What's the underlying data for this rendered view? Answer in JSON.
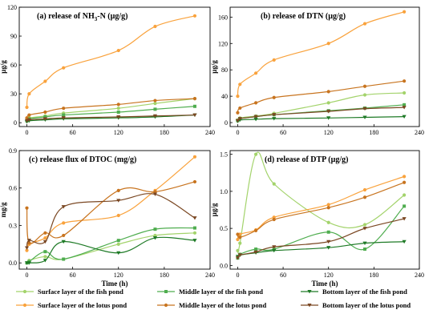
{
  "series_styles": [
    {
      "name": "Surface layer of the fish pond",
      "color": "#a3d36b",
      "marker": "circle"
    },
    {
      "name": "Middle layer of the fish pond",
      "color": "#4fad4f",
      "marker": "square"
    },
    {
      "name": "Bottom layer of the fish pond",
      "color": "#1e7a26",
      "marker": "tri-down"
    },
    {
      "name": "Surface layer of the lotus pond",
      "color": "#f9a23c",
      "marker": "circle"
    },
    {
      "name": "Middle layer of the lotus pond",
      "color": "#c8741f",
      "marker": "circle"
    },
    {
      "name": "Bottom layer of the lotus pond",
      "color": "#7a4722",
      "marker": "tri-down"
    }
  ],
  "chart_data": [
    {
      "type": "line",
      "title": "(a) release of NH",
      "title_sub": "3",
      "title_rest": "-N (µg/g)",
      "ylabel": "µg/g",
      "xlabel": "",
      "xlim": [
        -10,
        240
      ],
      "ylim": [
        -4,
        120
      ],
      "xticks": [
        0,
        60,
        120,
        180,
        240
      ],
      "yticks": [
        0,
        30,
        60,
        90,
        120
      ],
      "x": [
        0,
        3,
        24,
        48,
        120,
        168,
        220
      ],
      "series": [
        {
          "name": "Surface layer of the fish pond",
          "values": [
            3,
            5,
            7,
            10,
            15,
            20,
            25
          ]
        },
        {
          "name": "Middle layer of the fish pond",
          "values": [
            2,
            4,
            6,
            8,
            11,
            14,
            17
          ]
        },
        {
          "name": "Bottom layer of the fish pond",
          "values": [
            1,
            2,
            3,
            4,
            5,
            6,
            8
          ]
        },
        {
          "name": "Surface layer of the lotus pond",
          "values": [
            16,
            30,
            43,
            57,
            75,
            100,
            111
          ]
        },
        {
          "name": "Middle layer of the lotus pond",
          "values": [
            5,
            8,
            11,
            15,
            19,
            23,
            25
          ]
        },
        {
          "name": "Bottom layer of the lotus pond",
          "values": [
            2,
            3,
            4,
            5,
            6,
            7,
            8
          ]
        }
      ]
    },
    {
      "type": "line",
      "title": "(b) release of DTN (µg/g)",
      "ylabel": "µg/g",
      "xlabel": "",
      "xlim": [
        -10,
        240
      ],
      "ylim": [
        -6,
        175
      ],
      "xticks": [
        0,
        60,
        120,
        180,
        240
      ],
      "yticks": [
        0,
        40,
        80,
        120,
        160
      ],
      "x": [
        0,
        3,
        24,
        48,
        120,
        168,
        220
      ],
      "series": [
        {
          "name": "Surface layer of the fish pond",
          "values": [
            4,
            7,
            10,
            14,
            30,
            42,
            45
          ]
        },
        {
          "name": "Middle layer of the fish pond",
          "values": [
            3,
            6,
            9,
            12,
            18,
            22,
            27
          ]
        },
        {
          "name": "Bottom layer of the fish pond",
          "values": [
            2,
            4,
            5,
            6,
            7,
            8,
            9
          ]
        },
        {
          "name": "Surface layer of the lotus pond",
          "values": [
            40,
            58,
            75,
            95,
            120,
            150,
            168
          ]
        },
        {
          "name": "Middle layer of the lotus pond",
          "values": [
            15,
            22,
            30,
            38,
            47,
            55,
            63
          ]
        },
        {
          "name": "Bottom layer of the lotus pond",
          "values": [
            3,
            6,
            9,
            12,
            17,
            21,
            23
          ]
        }
      ]
    },
    {
      "type": "line",
      "title": "(c) release flux of DTOC (mg/g)",
      "ylabel": "mg/g",
      "xlabel": "Time (h)",
      "xlim": [
        -10,
        240
      ],
      "ylim": [
        -0.05,
        0.9
      ],
      "xticks": [
        0,
        60,
        120,
        180,
        240
      ],
      "yticks": [
        0.0,
        0.3,
        0.6,
        0.9
      ],
      "ytick_labels": [
        "0.0",
        "0.3",
        "0.6",
        "0.9"
      ],
      "x": [
        0,
        3,
        24,
        48,
        120,
        168,
        220
      ],
      "series": [
        {
          "name": "Surface layer of the fish pond",
          "values": [
            0.0,
            0.02,
            0.05,
            0.03,
            0.15,
            0.22,
            0.24
          ]
        },
        {
          "name": "Middle layer of the fish pond",
          "values": [
            0.0,
            0.01,
            0.09,
            0.03,
            0.18,
            0.27,
            0.28
          ]
        },
        {
          "name": "Bottom layer of the fish pond",
          "values": [
            0.0,
            0.0,
            0.02,
            0.17,
            0.08,
            0.2,
            0.18
          ]
        },
        {
          "name": "Surface layer of the lotus pond",
          "values": [
            0.1,
            0.15,
            0.2,
            0.32,
            0.38,
            0.58,
            0.85
          ]
        },
        {
          "name": "Middle layer of the lotus pond",
          "values": [
            0.44,
            0.16,
            0.24,
            0.22,
            0.58,
            0.57,
            0.65
          ]
        },
        {
          "name": "Bottom layer of the lotus pond",
          "values": [
            0.12,
            0.18,
            0.17,
            0.45,
            0.5,
            0.55,
            0.36
          ]
        }
      ]
    },
    {
      "type": "line",
      "title": "(d) release of DTP (µg/g)",
      "ylabel": "µg/g",
      "xlabel": "Time (h)",
      "xlim": [
        -10,
        240
      ],
      "ylim": [
        -0.05,
        1.55
      ],
      "xticks": [
        0,
        60,
        120,
        180,
        240
      ],
      "yticks": [
        0.0,
        0.5,
        1.0,
        1.5
      ],
      "ytick_labels": [
        "0.0",
        "0.5",
        "1.0",
        "1.5"
      ],
      "x": [
        0,
        3,
        24,
        48,
        120,
        168,
        220
      ],
      "series": [
        {
          "name": "Surface layer of the fish pond",
          "values": [
            0.2,
            0.3,
            1.5,
            1.1,
            0.58,
            0.55,
            0.95
          ]
        },
        {
          "name": "Middle layer of the fish pond",
          "values": [
            0.1,
            0.15,
            0.22,
            0.22,
            0.45,
            0.22,
            0.8
          ]
        },
        {
          "name": "Bottom layer of the fish pond",
          "values": [
            0.12,
            0.14,
            0.17,
            0.2,
            0.24,
            0.3,
            0.32
          ]
        },
        {
          "name": "Surface layer of the lotus pond",
          "values": [
            0.35,
            0.42,
            0.48,
            0.65,
            0.82,
            1.02,
            1.2
          ]
        },
        {
          "name": "Middle layer of the lotus pond",
          "values": [
            0.42,
            0.38,
            0.47,
            0.62,
            0.78,
            0.92,
            1.12
          ]
        },
        {
          "name": "Bottom layer of the lotus pond",
          "values": [
            0.1,
            0.14,
            0.18,
            0.25,
            0.32,
            0.5,
            0.63
          ]
        }
      ]
    }
  ]
}
